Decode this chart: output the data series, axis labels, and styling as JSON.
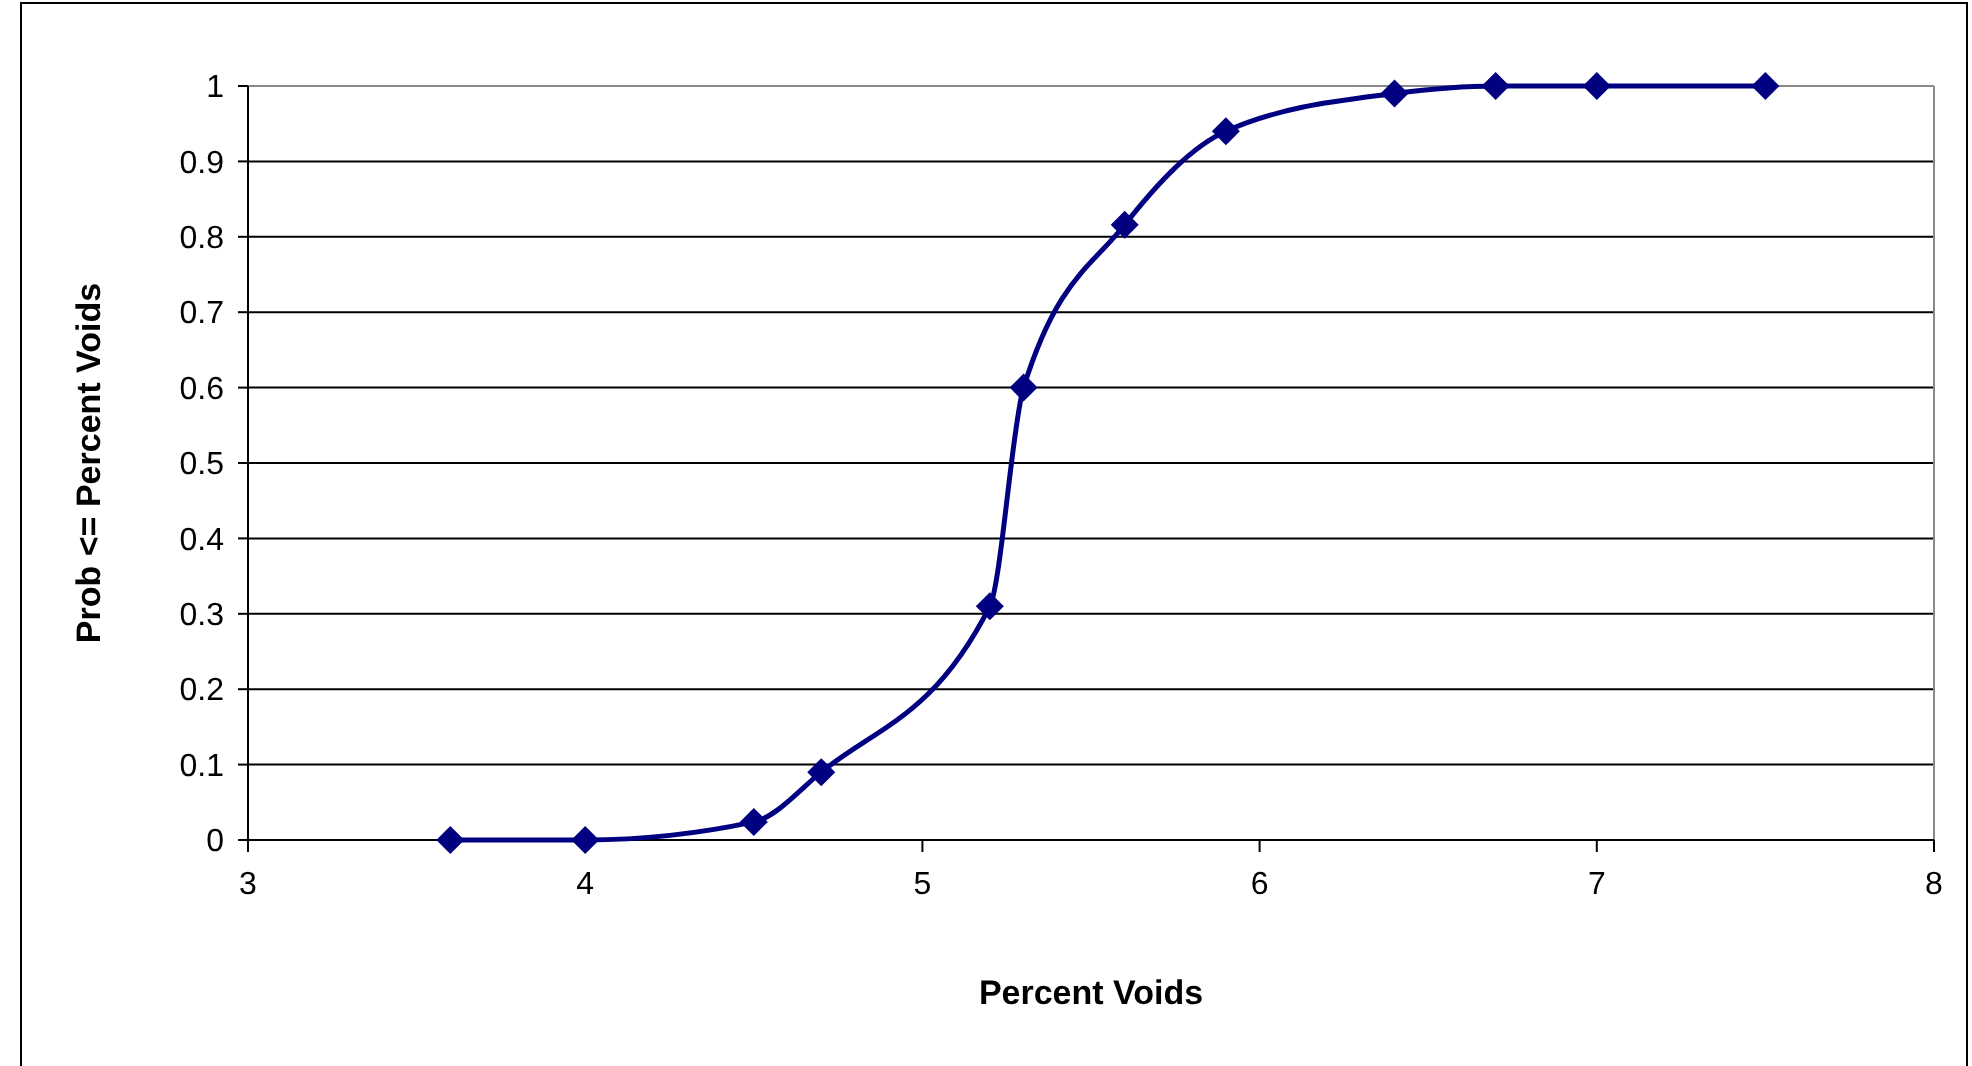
{
  "chart_data": {
    "type": "line",
    "xlabel": "Percent Voids",
    "ylabel": "Prob <= Percent Voids",
    "x": [
      3.6,
      4,
      4.5,
      4.7,
      5.2,
      5.3,
      5.6,
      5.9,
      6.4,
      6.7,
      7,
      7.5
    ],
    "series": [
      {
        "color": "#000080",
        "values": [
          0,
          0,
          0.024,
          0.09,
          0.31,
          0.6,
          0.816,
          0.94,
          0.99,
          1,
          1,
          1
        ]
      }
    ],
    "xlim": [
      3,
      8
    ],
    "xticks": [
      3,
      4,
      5,
      6,
      7,
      8
    ],
    "ylim": [
      0,
      1
    ],
    "yticks": [
      0,
      0.1,
      0.2,
      0.3,
      0.4,
      0.5,
      0.6,
      0.7,
      0.8,
      0.9,
      1
    ],
    "grid": "y",
    "marker": "diamond",
    "line_style": "solid"
  }
}
